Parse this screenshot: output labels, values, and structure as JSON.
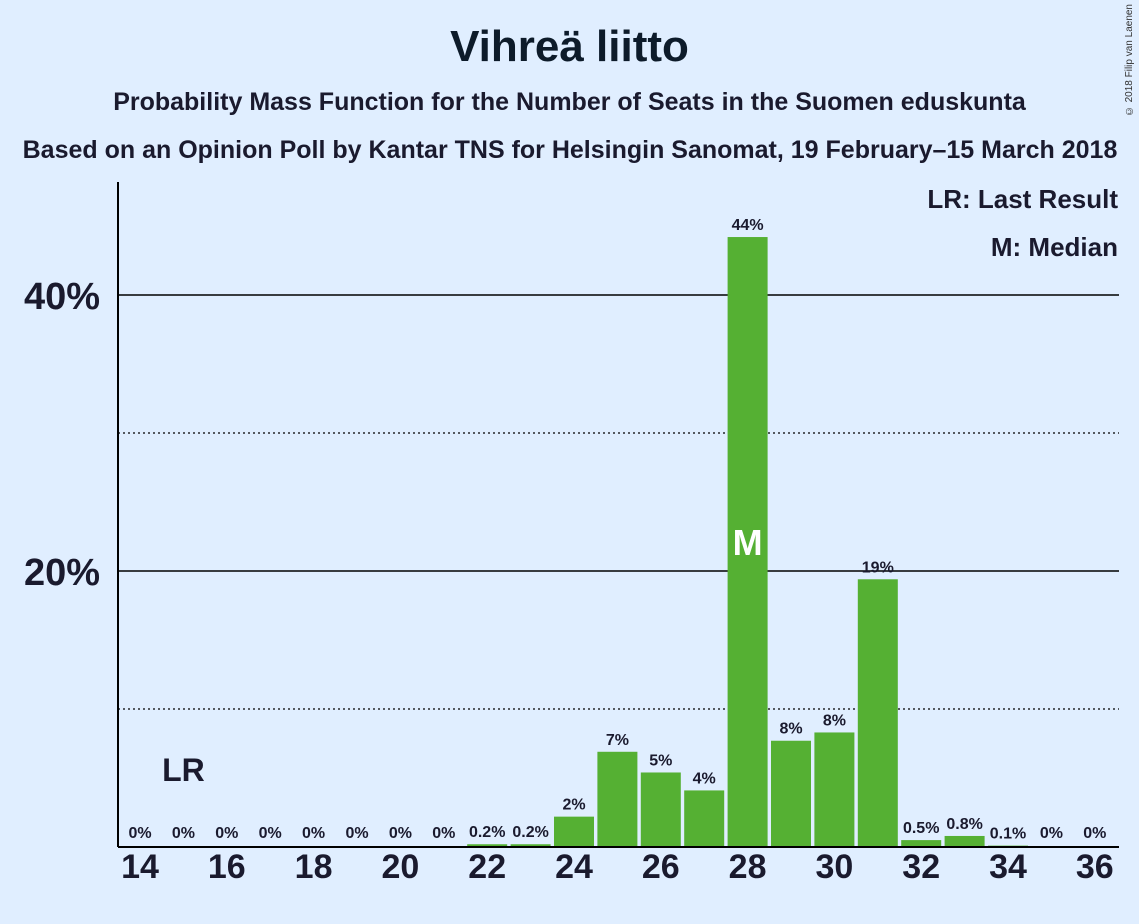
{
  "title": "Vihreä liitto",
  "subtitle": "Probability Mass Function for the Number of Seats in the Suomen eduskunta",
  "subtitle2": "Based on an Opinion Poll by Kantar TNS for Helsingin Sanomat, 19 February–15 March 2018",
  "copyright": "© 2018 Filip van Laenen",
  "legend": {
    "last_result": "LR: Last Result",
    "median": "M: Median"
  },
  "colors": {
    "bar": "#55b033",
    "background": "#e0eeff",
    "text": "#1a1a2e"
  },
  "chart_data": {
    "type": "bar",
    "x": [
      14,
      15,
      16,
      17,
      18,
      19,
      20,
      21,
      22,
      23,
      24,
      25,
      26,
      27,
      28,
      29,
      30,
      31,
      32,
      33,
      34,
      35,
      36
    ],
    "values": [
      0,
      0,
      0,
      0,
      0,
      0,
      0,
      0,
      0.2,
      0.2,
      2.2,
      6.9,
      5.4,
      4.1,
      44.2,
      7.7,
      8.3,
      19.4,
      0.5,
      0.8,
      0.1,
      0,
      0
    ],
    "labels": [
      "0%",
      "0%",
      "0%",
      "0%",
      "0%",
      "0%",
      "0%",
      "0%",
      "0.2%",
      "0.2%",
      "2%",
      "7%",
      "5%",
      "4%",
      "44%",
      "8%",
      "8%",
      "19%",
      "0.5%",
      "0.8%",
      "0.1%",
      "0%",
      "0%"
    ],
    "x_tick_labels": [
      "14",
      "16",
      "18",
      "20",
      "22",
      "24",
      "26",
      "28",
      "30",
      "32",
      "34",
      "36"
    ],
    "y_tick_labels": [
      "20%",
      "40%"
    ],
    "ylim": [
      0,
      48
    ],
    "last_result_seat": 15,
    "last_result_label": "LR",
    "median_seat": 28,
    "median_label": "M"
  }
}
